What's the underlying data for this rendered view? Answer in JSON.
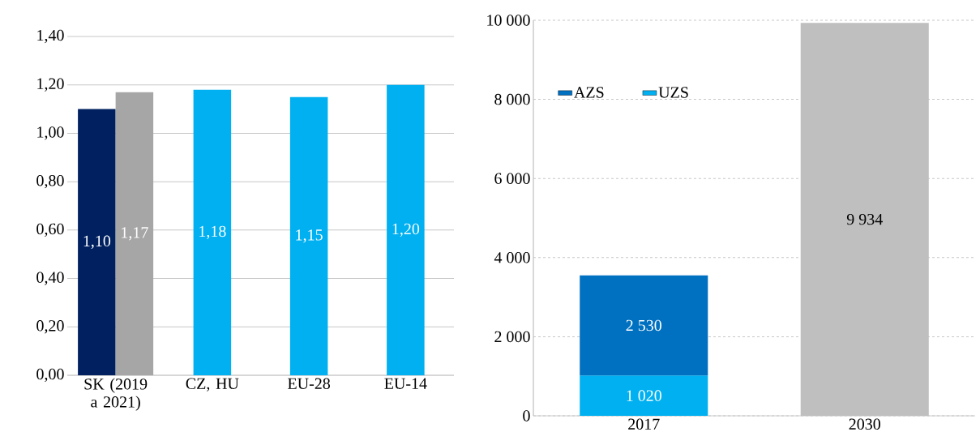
{
  "chart_data": [
    {
      "type": "bar",
      "categories": [
        "SK (2019 a 2021)",
        "CZ, HU",
        "EU-28",
        "EU-14"
      ],
      "series": [
        {
          "color": "#002060",
          "values": [
            1.1,
            null,
            null,
            null
          ],
          "value_labels": [
            "1,10",
            null,
            null,
            null
          ]
        },
        {
          "color": "#a6a6a6",
          "values": [
            1.17,
            null,
            null,
            null
          ],
          "value_labels": [
            "1,17",
            null,
            null,
            null
          ]
        },
        {
          "color": "#00b0f0",
          "values": [
            null,
            1.18,
            1.15,
            1.2
          ],
          "value_labels": [
            null,
            "1,18",
            "1,15",
            "1,20"
          ]
        }
      ],
      "ylim": [
        0,
        1.4
      ],
      "yticks": [
        {
          "value": 0,
          "label": "0,00"
        },
        {
          "value": 0.2,
          "label": "0,20"
        },
        {
          "value": 0.4,
          "label": "0,40"
        },
        {
          "value": 0.6,
          "label": "0,60"
        },
        {
          "value": 0.8,
          "label": "0,80"
        },
        {
          "value": 1.0,
          "label": "1,00"
        },
        {
          "value": 1.2,
          "label": "1,20"
        },
        {
          "value": 1.4,
          "label": "1,40"
        }
      ],
      "grid": "y",
      "legend": false
    },
    {
      "type": "bar",
      "stacked": true,
      "categories": [
        "2017",
        "2030"
      ],
      "series": [
        {
          "name": "UZS",
          "color": "#00b0f0",
          "values": [
            1020,
            null
          ],
          "value_labels": [
            "1 020",
            null
          ]
        },
        {
          "name": "AZS",
          "color": "#0070c0",
          "values": [
            2530,
            null
          ],
          "value_labels": [
            "2 530",
            null
          ]
        },
        {
          "color": "#bfbfbf",
          "values": [
            null,
            9934
          ],
          "value_labels": [
            null,
            "9 934"
          ]
        }
      ],
      "ylim": [
        0,
        10000
      ],
      "yticks": [
        0,
        {
          "value": 2000,
          "label": "2 000"
        },
        {
          "value": 4000,
          "label": "4 000"
        },
        {
          "value": 6000,
          "label": "6 000"
        },
        {
          "value": 8000,
          "label": "8 000"
        },
        {
          "value": 10000,
          "label": "10 000"
        }
      ],
      "grid": "y",
      "legend": "top left"
    }
  ]
}
